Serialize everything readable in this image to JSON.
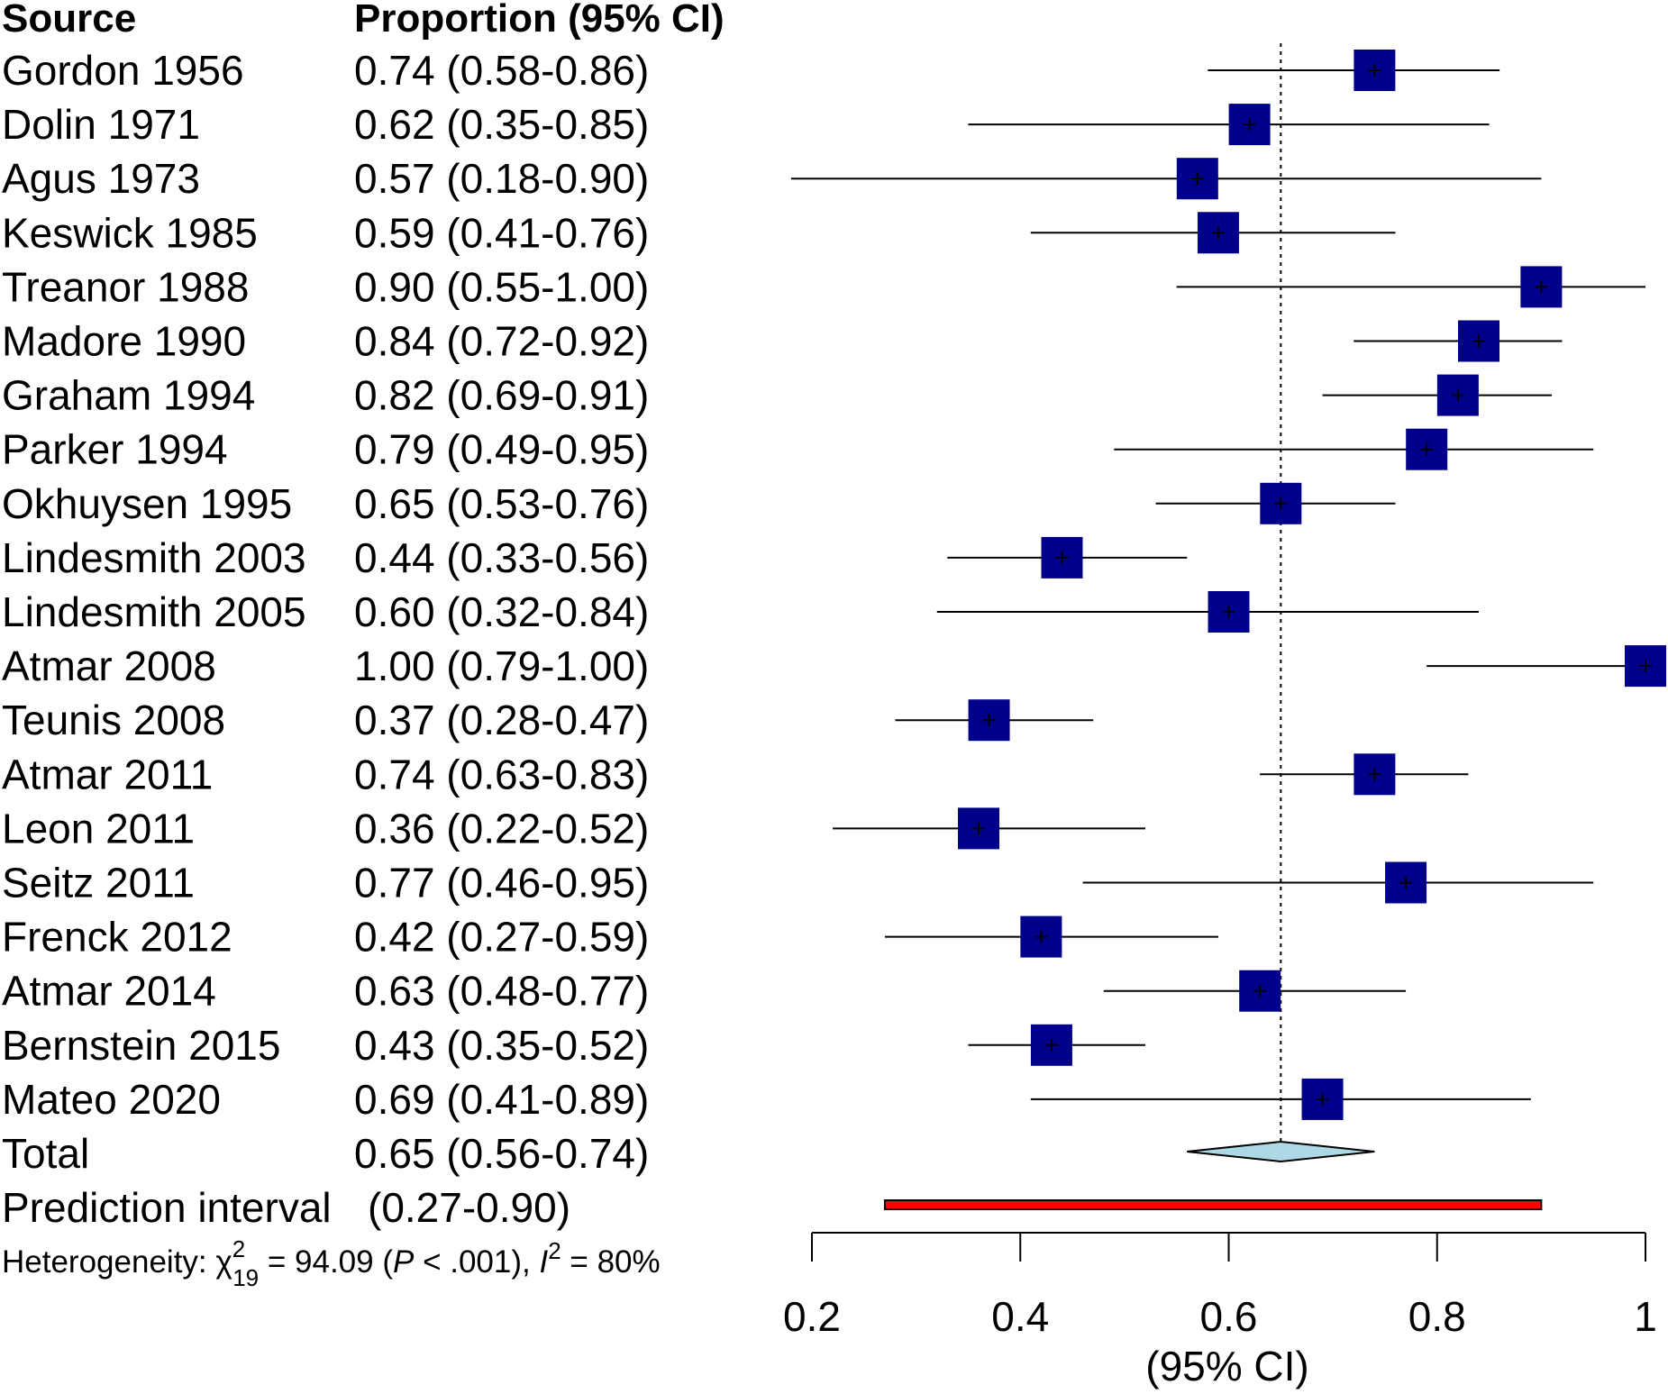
{
  "headers": {
    "source": "Source",
    "proportion": "Proportion (95% CI)"
  },
  "colors": {
    "study_marker": "#00008b",
    "pooled_diamond": "#add8e6",
    "prediction_bar": "#ff0000",
    "lines": "#000000"
  },
  "rows": [
    {
      "source": "Gordon 1956",
      "ci_text": "0.74 (0.58-0.86)"
    },
    {
      "source": "Dolin 1971",
      "ci_text": "0.62 (0.35-0.85)"
    },
    {
      "source": "Agus 1973",
      "ci_text": "0.57 (0.18-0.90)"
    },
    {
      "source": "Keswick 1985",
      "ci_text": "0.59 (0.41-0.76)"
    },
    {
      "source": "Treanor 1988",
      "ci_text": "0.90 (0.55-1.00)"
    },
    {
      "source": "Madore 1990",
      "ci_text": "0.84 (0.72-0.92)"
    },
    {
      "source": "Graham 1994",
      "ci_text": "0.82 (0.69-0.91)"
    },
    {
      "source": "Parker 1994",
      "ci_text": "0.79 (0.49-0.95)"
    },
    {
      "source": "Okhuysen 1995",
      "ci_text": "0.65 (0.53-0.76)"
    },
    {
      "source": "Lindesmith 2003",
      "ci_text": "0.44 (0.33-0.56)"
    },
    {
      "source": "Lindesmith 2005",
      "ci_text": "0.60 (0.32-0.84)"
    },
    {
      "source": "Atmar 2008",
      "ci_text": "1.00 (0.79-1.00)"
    },
    {
      "source": "Teunis 2008",
      "ci_text": "0.37 (0.28-0.47)"
    },
    {
      "source": "Atmar 2011",
      "ci_text": "0.74 (0.63-0.83)"
    },
    {
      "source": "Leon 2011",
      "ci_text": "0.36 (0.22-0.52)"
    },
    {
      "source": "Seitz 2011",
      "ci_text": "0.77 (0.46-0.95)"
    },
    {
      "source": "Frenck 2012",
      "ci_text": "0.42 (0.27-0.59)"
    },
    {
      "source": "Atmar 2014",
      "ci_text": "0.63 (0.48-0.77)"
    },
    {
      "source": "Bernstein 2015",
      "ci_text": "0.43 (0.35-0.52)"
    },
    {
      "source": "Mateo 2020",
      "ci_text": "0.69 (0.41-0.89)"
    }
  ],
  "total": {
    "label": "Total",
    "ci_text": "0.65 (0.56-0.74)"
  },
  "prediction": {
    "label": "Prediction interval",
    "ci_text": "(0.27-0.90)"
  },
  "heterogeneity": {
    "prefix": "Heterogeneity: ",
    "chi": "χ",
    "chi_sup": "2",
    "chi_sub": "19",
    "mid1": " = 94.09 (",
    "p": "P",
    "mid2": " < .001), ",
    "i": "I",
    "i_sup": "2",
    "suffix": " = 80%"
  },
  "chart_data": {
    "type": "forest",
    "xlabel": "(95% CI)",
    "xlim": [
      0.2,
      1.0
    ],
    "xticks": [
      0.2,
      0.4,
      0.6,
      0.8,
      1.0
    ],
    "xtick_labels": [
      "0.2",
      "0.4",
      "0.6",
      "0.8",
      "1"
    ],
    "reference_line": 0.65,
    "studies": [
      {
        "name": "Gordon 1956",
        "est": 0.74,
        "lo": 0.58,
        "hi": 0.86
      },
      {
        "name": "Dolin 1971",
        "est": 0.62,
        "lo": 0.35,
        "hi": 0.85
      },
      {
        "name": "Agus 1973",
        "est": 0.57,
        "lo": 0.18,
        "hi": 0.9
      },
      {
        "name": "Keswick 1985",
        "est": 0.59,
        "lo": 0.41,
        "hi": 0.76
      },
      {
        "name": "Treanor 1988",
        "est": 0.9,
        "lo": 0.55,
        "hi": 1.0
      },
      {
        "name": "Madore 1990",
        "est": 0.84,
        "lo": 0.72,
        "hi": 0.92
      },
      {
        "name": "Graham 1994",
        "est": 0.82,
        "lo": 0.69,
        "hi": 0.91
      },
      {
        "name": "Parker 1994",
        "est": 0.79,
        "lo": 0.49,
        "hi": 0.95
      },
      {
        "name": "Okhuysen 1995",
        "est": 0.65,
        "lo": 0.53,
        "hi": 0.76
      },
      {
        "name": "Lindesmith 2003",
        "est": 0.44,
        "lo": 0.33,
        "hi": 0.56
      },
      {
        "name": "Lindesmith 2005",
        "est": 0.6,
        "lo": 0.32,
        "hi": 0.84
      },
      {
        "name": "Atmar 2008",
        "est": 1.0,
        "lo": 0.79,
        "hi": 1.0
      },
      {
        "name": "Teunis 2008",
        "est": 0.37,
        "lo": 0.28,
        "hi": 0.47
      },
      {
        "name": "Atmar 2011",
        "est": 0.74,
        "lo": 0.63,
        "hi": 0.83
      },
      {
        "name": "Leon 2011",
        "est": 0.36,
        "lo": 0.22,
        "hi": 0.52
      },
      {
        "name": "Seitz 2011",
        "est": 0.77,
        "lo": 0.46,
        "hi": 0.95
      },
      {
        "name": "Frenck 2012",
        "est": 0.42,
        "lo": 0.27,
        "hi": 0.59
      },
      {
        "name": "Atmar 2014",
        "est": 0.63,
        "lo": 0.48,
        "hi": 0.77
      },
      {
        "name": "Bernstein 2015",
        "est": 0.43,
        "lo": 0.35,
        "hi": 0.52
      },
      {
        "name": "Mateo 2020",
        "est": 0.69,
        "lo": 0.41,
        "hi": 0.89
      }
    ],
    "pooled": {
      "name": "Total",
      "est": 0.65,
      "lo": 0.56,
      "hi": 0.74
    },
    "prediction_interval": {
      "lo": 0.27,
      "hi": 0.9
    }
  }
}
